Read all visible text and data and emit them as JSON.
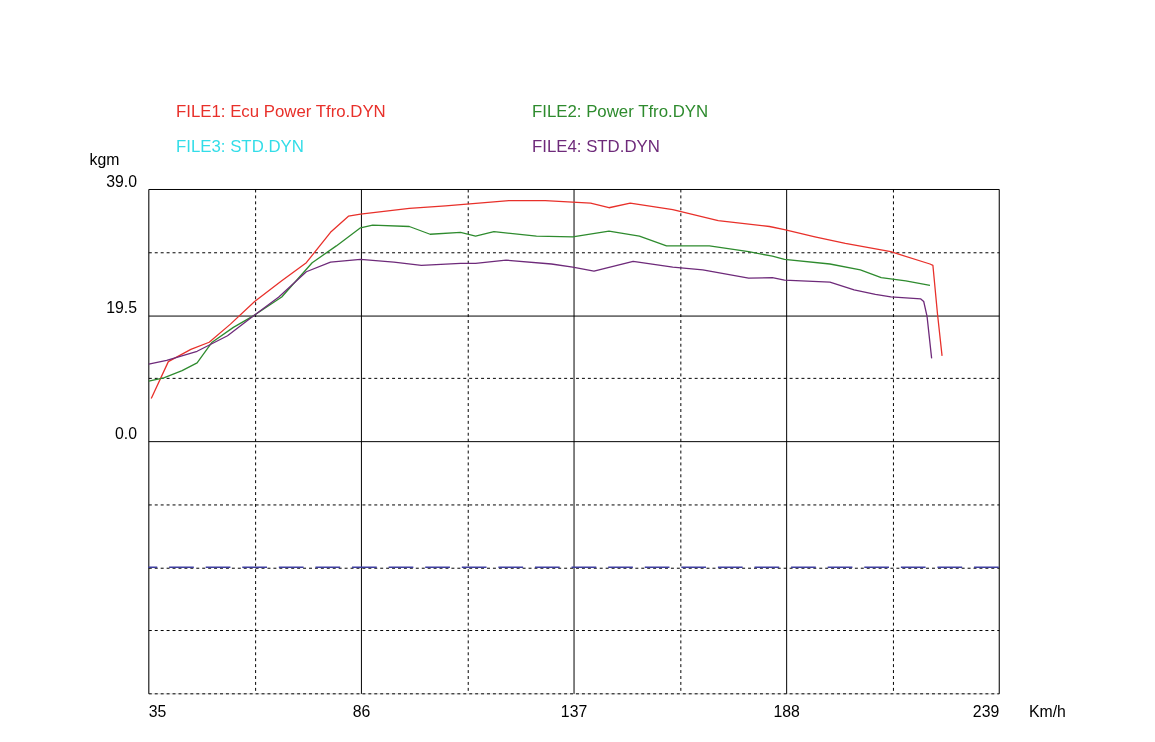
{
  "chart_data": {
    "type": "line",
    "xlabel": "Km/h",
    "ylabel": "kgm",
    "legend": "top",
    "grid": true,
    "line_style": "solid",
    "marker": "none",
    "xlim": [
      35,
      239
    ],
    "ylim": [
      -39,
      39
    ],
    "xticks": [
      35,
      {
        "value": 60.5,
        "label": null
      },
      86,
      {
        "value": 111.5,
        "label": null
      },
      137,
      {
        "value": 162.5,
        "label": null
      },
      188,
      {
        "value": 213.5,
        "label": null
      },
      239
    ],
    "yticks": [
      {
        "value": -39,
        "label": null
      },
      {
        "value": -29.25,
        "label": null
      },
      {
        "value": -19.5,
        "label": null
      },
      {
        "value": -9.75,
        "label": null
      },
      {
        "value": 0,
        "label": "0.0"
      },
      {
        "value": 9.75,
        "label": null
      },
      {
        "value": 19.5,
        "label": "19.5"
      },
      {
        "value": 29.25,
        "label": null
      },
      {
        "value": 39,
        "label": "39.0"
      }
    ],
    "ref_lines": [
      {
        "axis": "y",
        "value": -19.5,
        "label": null,
        "color": "#3f3fa0",
        "line_style": "dashed"
      }
    ],
    "series": [
      {
        "name": "FILE1: Ecu Power Tfro.DYN",
        "color": "#e8302a",
        "x": [
          35.7,
          39.8,
          45.2,
          49.6,
          54.7,
          60.5,
          67.0,
          72.9,
          78.7,
          83.0,
          85.9,
          97.6,
          106.3,
          121.5,
          130.2,
          141.1,
          145.5,
          150.6,
          160.8,
          171.7,
          184.0,
          187.6,
          194.9,
          202.2,
          213.1,
          222.5,
          223.2,
          224.3,
          225.4
        ],
        "values": [
          6.6,
          12.3,
          14.2,
          15.3,
          18.1,
          21.6,
          24.8,
          27.6,
          32.3,
          34.8,
          35.1,
          36.0,
          36.4,
          37.2,
          37.2,
          36.8,
          36.1,
          36.8,
          35.8,
          34.1,
          33.2,
          32.7,
          31.6,
          30.6,
          29.3,
          27.4,
          27.2,
          19.7,
          13.2
        ]
      },
      {
        "name": "FILE2: Power Tfro.DYN",
        "color": "#2e8b2e",
        "x": [
          35.1,
          38.7,
          43.1,
          46.7,
          50.3,
          55.4,
          60.5,
          67.0,
          74.3,
          80.1,
          85.9,
          88.8,
          97.6,
          102.6,
          109.9,
          113.5,
          117.9,
          128.1,
          136.8,
          145.5,
          152.8,
          159.3,
          169.6,
          179.0,
          184.7,
          187.6,
          198.5,
          205.8,
          210.8,
          216.7,
          222.5
        ],
        "values": [
          9.3,
          9.8,
          10.9,
          12.1,
          15.3,
          17.6,
          19.5,
          22.3,
          27.6,
          30.2,
          33.0,
          33.4,
          33.2,
          32.0,
          32.3,
          31.7,
          32.4,
          31.7,
          31.6,
          32.5,
          31.7,
          30.2,
          30.2,
          29.3,
          28.6,
          28.1,
          27.4,
          26.5,
          25.3,
          24.8,
          24.1
        ]
      },
      {
        "name": "FILE3: STD.DYN",
        "color": "#33dde8"
      },
      {
        "name": "FILE4: STD.DYN",
        "color": "#6e2a7a",
        "x": [
          35.1,
          39.4,
          46.7,
          54.0,
          60.5,
          66.3,
          72.9,
          78.7,
          85.9,
          93.9,
          100.5,
          109.9,
          113.5,
          120.8,
          131.7,
          136.8,
          141.9,
          151.3,
          160.8,
          168.0,
          179.0,
          184.7,
          187.6,
          198.5,
          204.3,
          209.4,
          213.1,
          220.3,
          221.0,
          221.8,
          222.9
        ],
        "values": [
          11.9,
          12.5,
          13.9,
          16.3,
          19.5,
          22.3,
          26.2,
          27.7,
          28.1,
          27.7,
          27.2,
          27.5,
          27.5,
          28.0,
          27.4,
          26.9,
          26.3,
          27.8,
          26.9,
          26.5,
          25.2,
          25.3,
          24.9,
          24.6,
          23.4,
          22.7,
          22.3,
          22.0,
          21.6,
          19.3,
          12.8
        ]
      }
    ]
  }
}
